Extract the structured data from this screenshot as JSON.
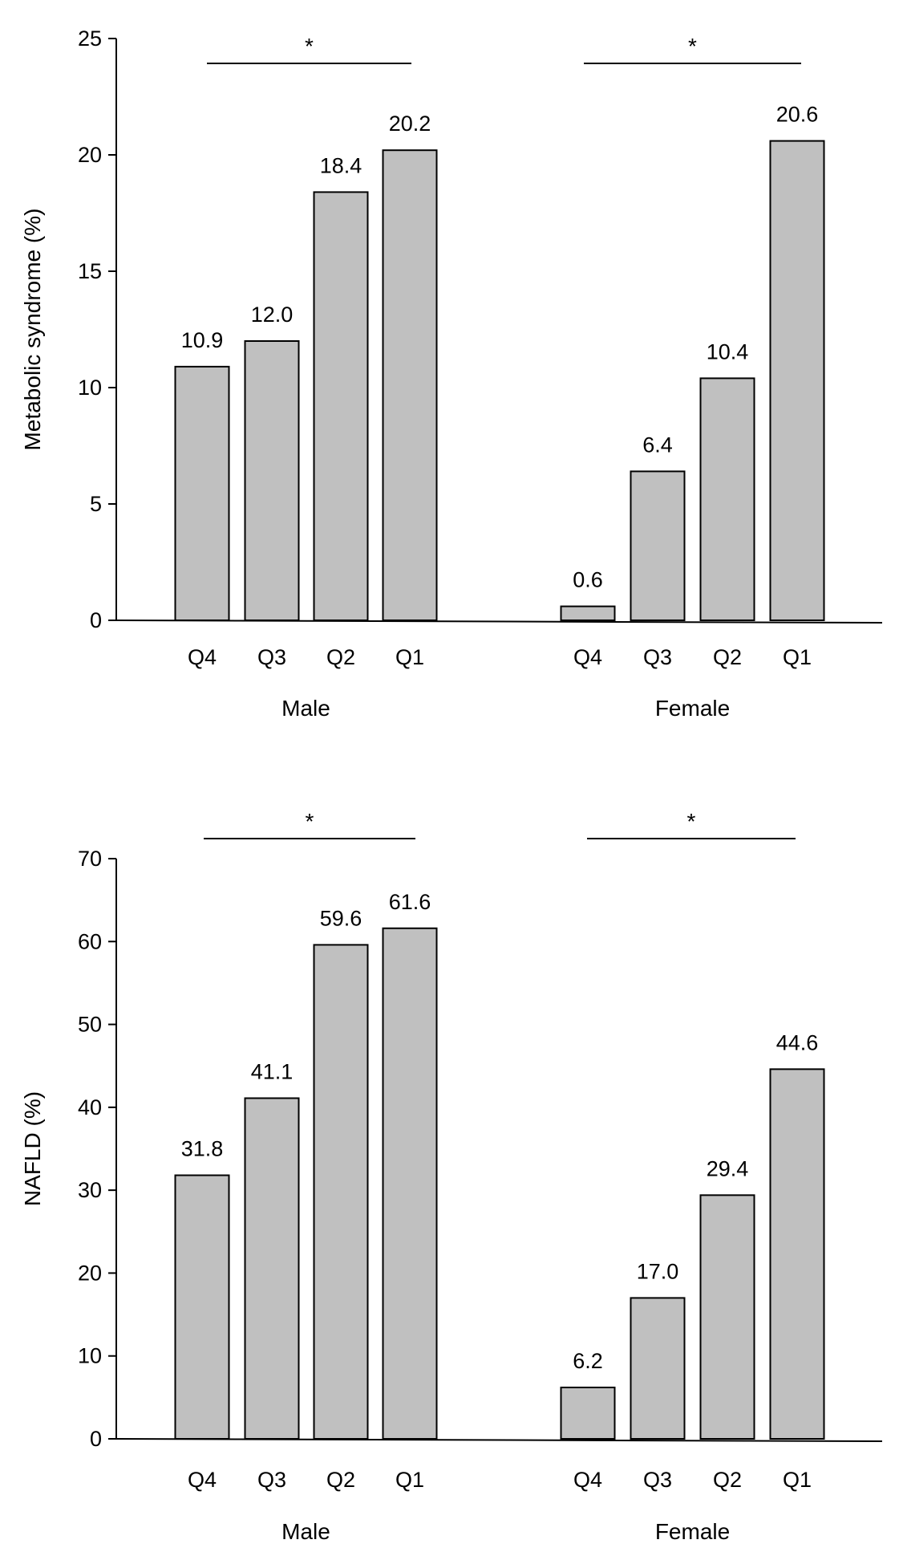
{
  "chart_data": [
    {
      "type": "bar",
      "panel": "top",
      "title": "",
      "xlabel": "",
      "ylabel": "Metabolic syndrome (%)",
      "ylim": [
        0,
        25
      ],
      "yticks": [
        0,
        5,
        10,
        15,
        20,
        25
      ],
      "ytick_labels": [
        "0",
        "5",
        "10",
        "15",
        "20",
        "25"
      ],
      "grid": false,
      "groups": [
        {
          "name": "Male",
          "categories": [
            "Q4",
            "Q3",
            "Q2",
            "Q1"
          ],
          "values": [
            10.9,
            12.0,
            18.4,
            20.2
          ],
          "value_labels": [
            "10.9",
            "12.0",
            "18.4",
            "20.2"
          ],
          "significance": "*"
        },
        {
          "name": "Female",
          "categories": [
            "Q4",
            "Q3",
            "Q2",
            "Q1"
          ],
          "values": [
            0.6,
            6.4,
            10.4,
            20.6
          ],
          "value_labels": [
            "0.6",
            "6.4",
            "10.4",
            "20.6"
          ],
          "significance": "*"
        }
      ]
    },
    {
      "type": "bar",
      "panel": "bottom",
      "title": "",
      "xlabel": "",
      "ylabel": "NAFLD (%)",
      "ylim": [
        0,
        70
      ],
      "yticks": [
        0,
        10,
        20,
        30,
        40,
        50,
        60,
        70
      ],
      "ytick_labels": [
        "0",
        "10",
        "20",
        "30",
        "40",
        "50",
        "60",
        "70"
      ],
      "grid": false,
      "groups": [
        {
          "name": "Male",
          "categories": [
            "Q4",
            "Q3",
            "Q2",
            "Q1"
          ],
          "values": [
            31.8,
            41.1,
            59.6,
            61.6
          ],
          "value_labels": [
            "31.8",
            "41.1",
            "59.6",
            "61.6"
          ],
          "significance": "*"
        },
        {
          "name": "Female",
          "categories": [
            "Q4",
            "Q3",
            "Q2",
            "Q1"
          ],
          "values": [
            6.2,
            17.0,
            29.4,
            44.6
          ],
          "value_labels": [
            "6.2",
            "17.0",
            "29.4",
            "44.6"
          ],
          "significance": "*"
        }
      ]
    }
  ],
  "colors": {
    "bar_fill": "#c0c0c0",
    "bar_stroke": "#000000",
    "axis": "#000000"
  }
}
